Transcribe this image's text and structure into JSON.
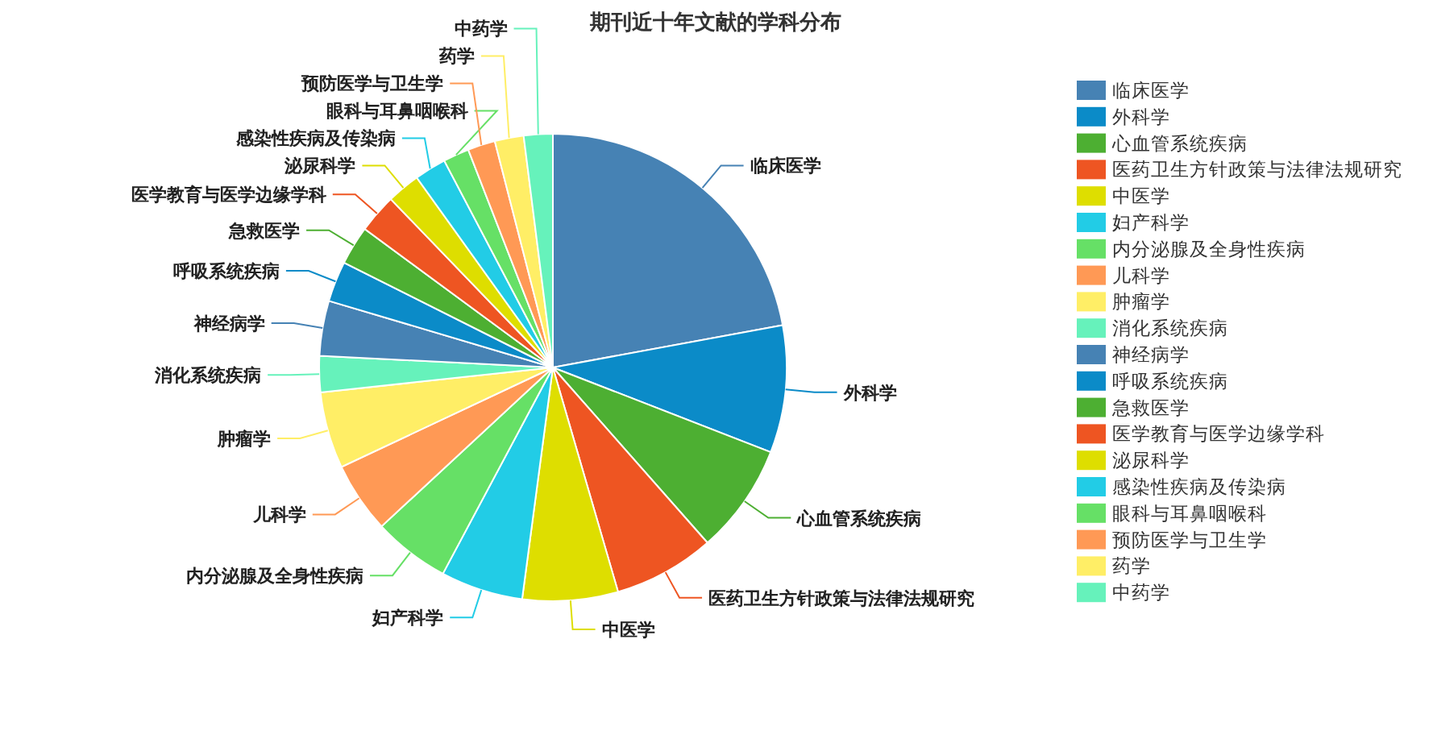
{
  "chart_data": {
    "type": "pie",
    "title": "期刊近十年文献的学科分布",
    "legend": "top right",
    "categories": [
      "临床医学",
      "外科学",
      "心血管系统疾病",
      "医药卫生方针政策与法律法规研究",
      "中医学",
      "妇产科学",
      "内分泌腺及全身性疾病",
      "儿科学",
      "肿瘤学",
      "消化系统疾病",
      "神经病学",
      "呼吸系统疾病",
      "急救医学",
      "医学教育与医学边缘学科",
      "泌尿科学",
      "感染性疾病及传染病",
      "眼科与耳鼻咽喉科",
      "预防医学与卫生学",
      "药学",
      "中药学"
    ],
    "values": [
      22.1,
      8.8,
      7.6,
      7.0,
      6.6,
      5.7,
      5.3,
      4.9,
      5.3,
      2.5,
      3.8,
      2.8,
      2.7,
      2.7,
      2.3,
      2.2,
      1.8,
      1.9,
      2.0,
      2.0
    ],
    "colors": [
      "#4682b4",
      "#0b8bc8",
      "#4daf32",
      "#ee5522",
      "#dede00",
      "#22cce6",
      "#66e066",
      "#ff9955",
      "#ffee66",
      "#66f2bb",
      "#4682b4",
      "#0b8bc8",
      "#4daf32",
      "#ee5522",
      "#dede00",
      "#22cce6",
      "#66e066",
      "#ff9955",
      "#ffee66",
      "#66f2bb"
    ]
  }
}
